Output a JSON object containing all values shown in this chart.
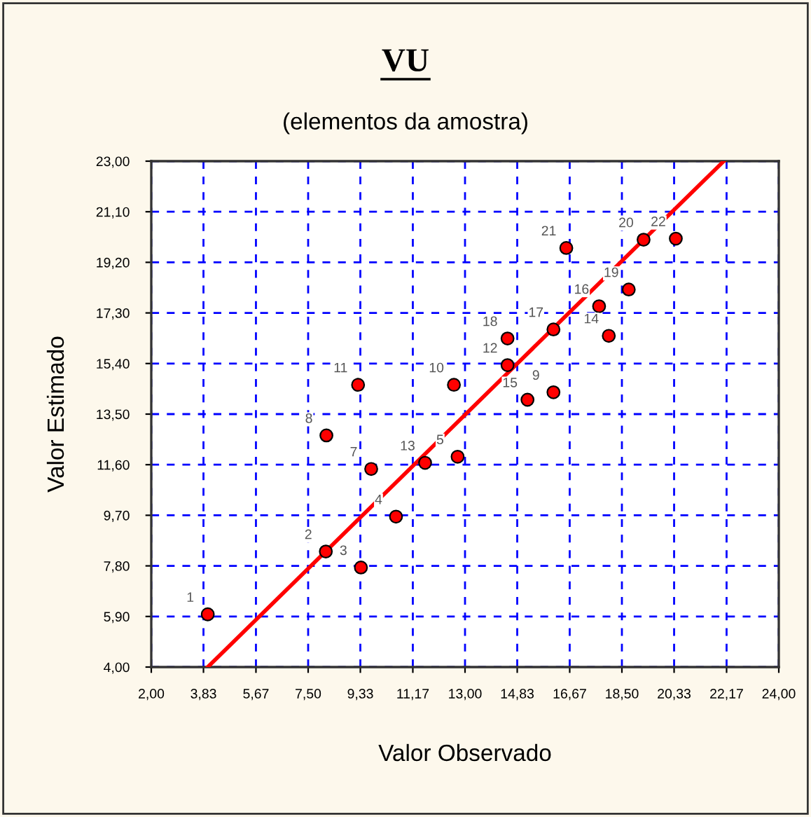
{
  "chart_data": {
    "type": "scatter",
    "title": "VU",
    "subtitle": "(elementos da amostra)",
    "xlabel": "Valor Observado",
    "ylabel": "Valor Estimado",
    "xlim": [
      2.0,
      24.0
    ],
    "ylim": [
      4.0,
      23.0
    ],
    "xticks": [
      {
        "value": 2.0,
        "label": "2,00"
      },
      {
        "value": 3.83,
        "label": "3,83"
      },
      {
        "value": 5.67,
        "label": "5,67"
      },
      {
        "value": 7.5,
        "label": "7,50"
      },
      {
        "value": 9.33,
        "label": "9,33"
      },
      {
        "value": 11.17,
        "label": "11,17"
      },
      {
        "value": 13.0,
        "label": "13,00"
      },
      {
        "value": 14.83,
        "label": "14,83"
      },
      {
        "value": 16.67,
        "label": "16,67"
      },
      {
        "value": 18.5,
        "label": "18,50"
      },
      {
        "value": 20.33,
        "label": "20,33"
      },
      {
        "value": 22.17,
        "label": "22,17"
      },
      {
        "value": 24.0,
        "label": "24,00"
      }
    ],
    "yticks": [
      {
        "value": 4.0,
        "label": "4,00"
      },
      {
        "value": 5.9,
        "label": "5,90"
      },
      {
        "value": 7.8,
        "label": "7,80"
      },
      {
        "value": 9.7,
        "label": "9,70"
      },
      {
        "value": 11.6,
        "label": "11,60"
      },
      {
        "value": 13.5,
        "label": "13,50"
      },
      {
        "value": 15.4,
        "label": "15,40"
      },
      {
        "value": 17.3,
        "label": "17,30"
      },
      {
        "value": 19.2,
        "label": "19,20"
      },
      {
        "value": 21.1,
        "label": "21,10"
      },
      {
        "value": 23.0,
        "label": "23,00"
      }
    ],
    "grid": true,
    "marker": "circle",
    "series": [
      {
        "color": "#ff0000",
        "x": [
          3.98,
          8.12,
          9.35,
          10.58,
          12.74,
          9.71,
          8.14,
          16.1,
          12.61,
          9.25,
          14.49,
          11.6,
          18.04,
          15.19,
          17.7,
          16.1,
          14.49,
          18.74,
          19.26,
          16.55,
          20.39
        ],
        "values": [
          5.98,
          8.34,
          7.74,
          9.65,
          11.9,
          11.44,
          12.7,
          14.32,
          14.6,
          14.6,
          15.34,
          11.67,
          16.44,
          14.04,
          17.55,
          16.68,
          16.34,
          18.18,
          20.05,
          19.74,
          20.09
        ]
      },
      {
        "type": "line",
        "color": "#ff0000",
        "x": [
          3.98,
          22.07
        ],
        "values": [
          4.0,
          23.0
        ],
        "marker": "none",
        "line_style": "solid"
      }
    ],
    "annotations": [
      {
        "text": "1",
        "x": 3.98,
        "y": 5.98
      },
      {
        "text": "2",
        "x": 8.12,
        "y": 8.34
      },
      {
        "text": "3",
        "x": 9.35,
        "y": 7.74
      },
      {
        "text": "4",
        "x": 10.58,
        "y": 9.65
      },
      {
        "text": "5",
        "x": 12.74,
        "y": 11.9
      },
      {
        "text": "7",
        "x": 9.71,
        "y": 11.44
      },
      {
        "text": "8",
        "x": 8.14,
        "y": 12.7
      },
      {
        "text": "9",
        "x": 16.1,
        "y": 14.32
      },
      {
        "text": "10",
        "x": 12.61,
        "y": 14.6
      },
      {
        "text": "11",
        "x": 9.25,
        "y": 14.6
      },
      {
        "text": "12",
        "x": 14.49,
        "y": 15.34
      },
      {
        "text": "13",
        "x": 11.6,
        "y": 11.67
      },
      {
        "text": "14",
        "x": 18.04,
        "y": 16.44
      },
      {
        "text": "15",
        "x": 15.19,
        "y": 14.04
      },
      {
        "text": "16",
        "x": 17.7,
        "y": 17.55
      },
      {
        "text": "17",
        "x": 16.1,
        "y": 16.68
      },
      {
        "text": "18",
        "x": 14.49,
        "y": 16.34
      },
      {
        "text": "19",
        "x": 18.74,
        "y": 18.18
      },
      {
        "text": "20",
        "x": 19.26,
        "y": 20.05
      },
      {
        "text": "21",
        "x": 16.55,
        "y": 19.74
      },
      {
        "text": "22",
        "x": 20.39,
        "y": 20.09
      }
    ]
  }
}
